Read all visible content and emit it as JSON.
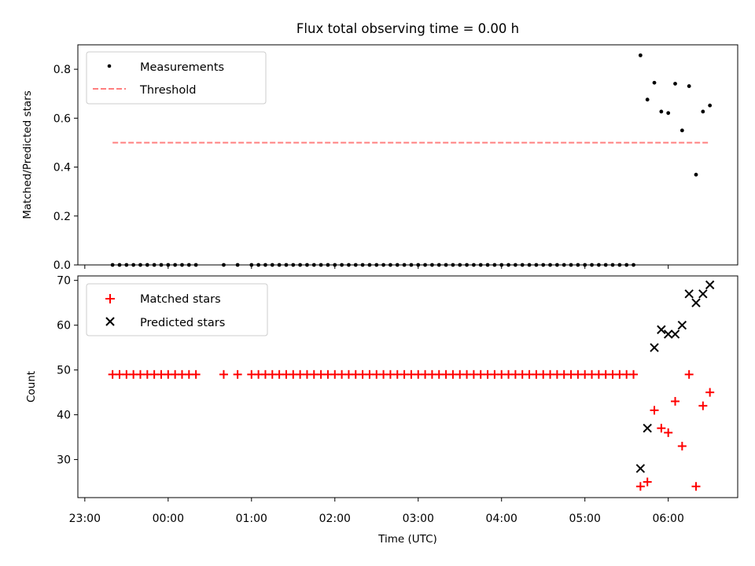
{
  "chart_data": [
    {
      "type": "scatter",
      "title": "Flux total observing time = 0.00 h",
      "ylabel": "Matched/Predicted stars",
      "xlim": [
        "22:55",
        "06:50"
      ],
      "ylim": [
        0,
        0.9
      ],
      "yticks": [
        "0.0",
        "0.2",
        "0.4",
        "0.6",
        "0.8"
      ],
      "legend_position": "top-left",
      "grid": false,
      "series": [
        {
          "name": "Measurements",
          "marker": "dot",
          "color": "#000000",
          "points": [
            [
              "23:20",
              0
            ],
            [
              "23:25",
              0
            ],
            [
              "23:30",
              0
            ],
            [
              "23:35",
              0
            ],
            [
              "23:40",
              0
            ],
            [
              "23:45",
              0
            ],
            [
              "23:50",
              0
            ],
            [
              "23:55",
              0
            ],
            [
              "00:00",
              0
            ],
            [
              "00:05",
              0
            ],
            [
              "00:10",
              0
            ],
            [
              "00:15",
              0
            ],
            [
              "00:20",
              0
            ],
            [
              "00:40",
              0
            ],
            [
              "00:50",
              0
            ],
            [
              "01:00",
              0
            ],
            [
              "01:05",
              0
            ],
            [
              "01:10",
              0
            ],
            [
              "01:15",
              0
            ],
            [
              "01:20",
              0
            ],
            [
              "01:25",
              0
            ],
            [
              "01:30",
              0
            ],
            [
              "01:35",
              0
            ],
            [
              "01:40",
              0
            ],
            [
              "01:45",
              0
            ],
            [
              "01:50",
              0
            ],
            [
              "01:55",
              0
            ],
            [
              "02:00",
              0
            ],
            [
              "02:05",
              0
            ],
            [
              "02:10",
              0
            ],
            [
              "02:15",
              0
            ],
            [
              "02:20",
              0
            ],
            [
              "02:25",
              0
            ],
            [
              "02:30",
              0
            ],
            [
              "02:35",
              0
            ],
            [
              "02:40",
              0
            ],
            [
              "02:45",
              0
            ],
            [
              "02:50",
              0
            ],
            [
              "02:55",
              0
            ],
            [
              "03:00",
              0
            ],
            [
              "03:05",
              0
            ],
            [
              "03:10",
              0
            ],
            [
              "03:15",
              0
            ],
            [
              "03:20",
              0
            ],
            [
              "03:25",
              0
            ],
            [
              "03:30",
              0
            ],
            [
              "03:35",
              0
            ],
            [
              "03:40",
              0
            ],
            [
              "03:45",
              0
            ],
            [
              "03:50",
              0
            ],
            [
              "03:55",
              0
            ],
            [
              "04:00",
              0
            ],
            [
              "04:05",
              0
            ],
            [
              "04:10",
              0
            ],
            [
              "04:15",
              0
            ],
            [
              "04:20",
              0
            ],
            [
              "04:25",
              0
            ],
            [
              "04:30",
              0
            ],
            [
              "04:35",
              0
            ],
            [
              "04:40",
              0
            ],
            [
              "04:45",
              0
            ],
            [
              "04:50",
              0
            ],
            [
              "04:55",
              0
            ],
            [
              "05:00",
              0
            ],
            [
              "05:05",
              0
            ],
            [
              "05:10",
              0
            ],
            [
              "05:15",
              0
            ],
            [
              "05:20",
              0
            ],
            [
              "05:25",
              0
            ],
            [
              "05:30",
              0
            ],
            [
              "05:35",
              0
            ],
            [
              "05:40",
              0.857
            ],
            [
              "05:45",
              0.676
            ],
            [
              "05:50",
              0.745
            ],
            [
              "05:55",
              0.627
            ],
            [
              "06:00",
              0.621
            ],
            [
              "06:05",
              0.741
            ],
            [
              "06:10",
              0.55
            ],
            [
              "06:15",
              0.731
            ],
            [
              "06:20",
              0.369
            ],
            [
              "06:25",
              0.627
            ],
            [
              "06:30",
              0.652
            ]
          ]
        },
        {
          "name": "Threshold",
          "style": "dashed",
          "color": "#ff7f7f",
          "points": [
            [
              "23:20",
              0.5
            ],
            [
              "06:30",
              0.5
            ]
          ]
        }
      ]
    },
    {
      "type": "scatter",
      "xlabel": "Time (UTC)",
      "ylabel": "Count",
      "xlim": [
        "22:55",
        "06:50"
      ],
      "ylim": [
        21.5,
        71
      ],
      "xticks": [
        "23:00",
        "00:00",
        "01:00",
        "02:00",
        "03:00",
        "04:00",
        "05:00",
        "06:00"
      ],
      "yticks": [
        "30",
        "40",
        "50",
        "60",
        "70"
      ],
      "legend_position": "top-left",
      "grid": false,
      "series": [
        {
          "name": "Matched stars",
          "marker": "plus",
          "color": "#ff0000",
          "points": [
            [
              "23:20",
              49
            ],
            [
              "23:25",
              49
            ],
            [
              "23:30",
              49
            ],
            [
              "23:35",
              49
            ],
            [
              "23:40",
              49
            ],
            [
              "23:45",
              49
            ],
            [
              "23:50",
              49
            ],
            [
              "23:55",
              49
            ],
            [
              "00:00",
              49
            ],
            [
              "00:05",
              49
            ],
            [
              "00:10",
              49
            ],
            [
              "00:15",
              49
            ],
            [
              "00:20",
              49
            ],
            [
              "00:40",
              49
            ],
            [
              "00:50",
              49
            ],
            [
              "01:00",
              49
            ],
            [
              "01:05",
              49
            ],
            [
              "01:10",
              49
            ],
            [
              "01:15",
              49
            ],
            [
              "01:20",
              49
            ],
            [
              "01:25",
              49
            ],
            [
              "01:30",
              49
            ],
            [
              "01:35",
              49
            ],
            [
              "01:40",
              49
            ],
            [
              "01:45",
              49
            ],
            [
              "01:50",
              49
            ],
            [
              "01:55",
              49
            ],
            [
              "02:00",
              49
            ],
            [
              "02:05",
              49
            ],
            [
              "02:10",
              49
            ],
            [
              "02:15",
              49
            ],
            [
              "02:20",
              49
            ],
            [
              "02:25",
              49
            ],
            [
              "02:30",
              49
            ],
            [
              "02:35",
              49
            ],
            [
              "02:40",
              49
            ],
            [
              "02:45",
              49
            ],
            [
              "02:50",
              49
            ],
            [
              "02:55",
              49
            ],
            [
              "03:00",
              49
            ],
            [
              "03:05",
              49
            ],
            [
              "03:10",
              49
            ],
            [
              "03:15",
              49
            ],
            [
              "03:20",
              49
            ],
            [
              "03:25",
              49
            ],
            [
              "03:30",
              49
            ],
            [
              "03:35",
              49
            ],
            [
              "03:40",
              49
            ],
            [
              "03:45",
              49
            ],
            [
              "03:50",
              49
            ],
            [
              "03:55",
              49
            ],
            [
              "04:00",
              49
            ],
            [
              "04:05",
              49
            ],
            [
              "04:10",
              49
            ],
            [
              "04:15",
              49
            ],
            [
              "04:20",
              49
            ],
            [
              "04:25",
              49
            ],
            [
              "04:30",
              49
            ],
            [
              "04:35",
              49
            ],
            [
              "04:40",
              49
            ],
            [
              "04:45",
              49
            ],
            [
              "04:50",
              49
            ],
            [
              "04:55",
              49
            ],
            [
              "05:00",
              49
            ],
            [
              "05:05",
              49
            ],
            [
              "05:10",
              49
            ],
            [
              "05:15",
              49
            ],
            [
              "05:20",
              49
            ],
            [
              "05:25",
              49
            ],
            [
              "05:30",
              49
            ],
            [
              "05:35",
              49
            ],
            [
              "05:40",
              24
            ],
            [
              "05:45",
              25
            ],
            [
              "05:50",
              41
            ],
            [
              "05:55",
              37
            ],
            [
              "06:00",
              36
            ],
            [
              "06:05",
              43
            ],
            [
              "06:10",
              33
            ],
            [
              "06:15",
              49
            ],
            [
              "06:20",
              24
            ],
            [
              "06:25",
              42
            ],
            [
              "06:30",
              45
            ]
          ]
        },
        {
          "name": "Predicted stars",
          "marker": "x",
          "color": "#000000",
          "points": [
            [
              "05:40",
              28
            ],
            [
              "05:45",
              37
            ],
            [
              "05:50",
              55
            ],
            [
              "05:55",
              59
            ],
            [
              "06:00",
              58
            ],
            [
              "06:05",
              58
            ],
            [
              "06:10",
              60
            ],
            [
              "06:15",
              67
            ],
            [
              "06:20",
              65
            ],
            [
              "06:25",
              67
            ],
            [
              "06:30",
              69
            ]
          ]
        }
      ]
    }
  ]
}
